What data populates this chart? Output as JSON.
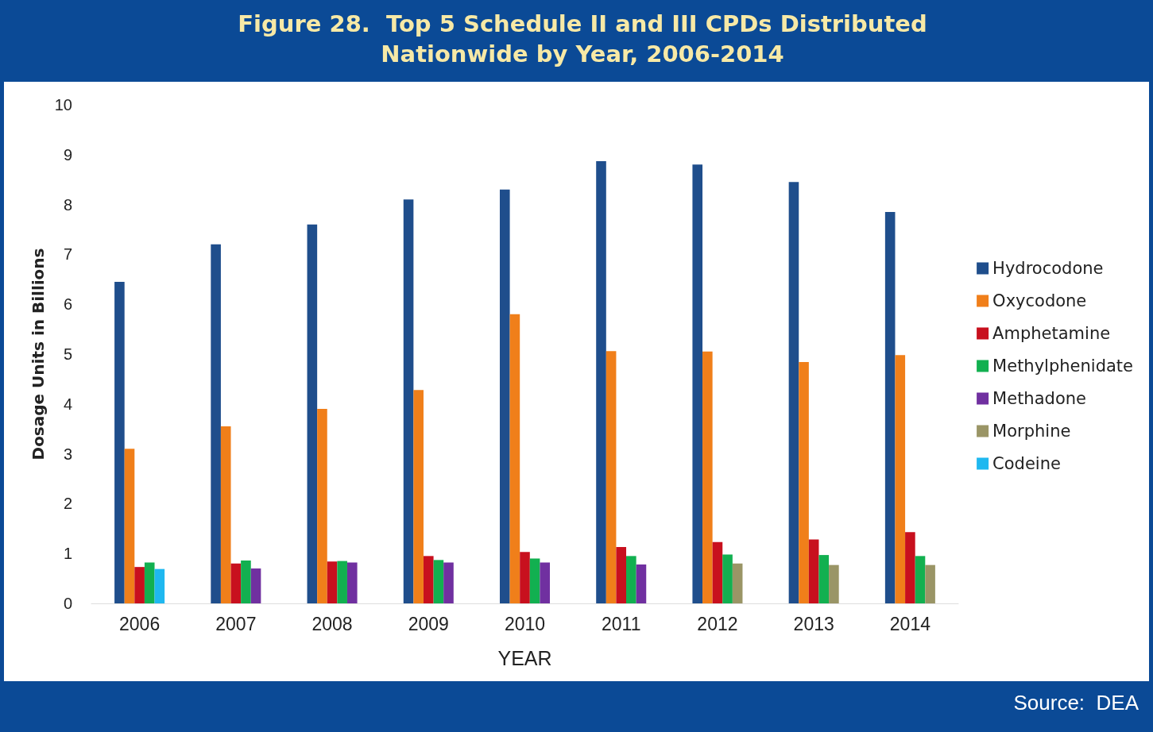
{
  "chart_data": {
    "type": "bar",
    "title": "Figure 28.  Top 5 Schedule II and III CPDs Distributed\nNationwide by Year, 2006-2014",
    "xlabel": "YEAR",
    "ylabel": "Dosage Units in Billions",
    "categories": [
      "2006",
      "2007",
      "2008",
      "2009",
      "2010",
      "2011",
      "2012",
      "2013",
      "2014"
    ],
    "series": [
      {
        "name": "Hydrocodone",
        "color": "#1f4e8c",
        "values": [
          6.45,
          7.2,
          7.6,
          8.1,
          8.3,
          8.87,
          8.8,
          8.45,
          7.85
        ]
      },
      {
        "name": "Oxycodone",
        "color": "#f07f1a",
        "values": [
          3.1,
          3.55,
          3.9,
          4.28,
          5.8,
          5.06,
          5.05,
          4.84,
          4.98
        ]
      },
      {
        "name": "Amphetamine",
        "color": "#c8101e",
        "values": [
          0.73,
          0.8,
          0.84,
          0.95,
          1.03,
          1.13,
          1.23,
          1.28,
          1.43
        ]
      },
      {
        "name": "Methylphenidate",
        "color": "#12b050",
        "values": [
          0.82,
          0.86,
          0.85,
          0.87,
          0.9,
          0.95,
          0.98,
          0.97,
          0.95
        ]
      },
      {
        "name": "Methadone",
        "color": "#7030a0",
        "values": [
          null,
          0.7,
          0.82,
          0.82,
          0.82,
          0.78,
          null,
          null,
          null
        ]
      },
      {
        "name": "Morphine",
        "color": "#9a9566",
        "values": [
          null,
          null,
          null,
          null,
          null,
          null,
          0.8,
          0.77,
          0.77
        ]
      },
      {
        "name": "Codeine",
        "color": "#1fb8f0",
        "values": [
          0.69,
          null,
          null,
          null,
          null,
          null,
          null,
          null,
          null
        ]
      }
    ],
    "ylim": [
      0,
      10
    ],
    "yticks": [
      0,
      1,
      2,
      3,
      4,
      5,
      6,
      7,
      8,
      9,
      10
    ],
    "grid": false,
    "legend": "right",
    "annotations": [
      "Source:  DEA"
    ]
  }
}
